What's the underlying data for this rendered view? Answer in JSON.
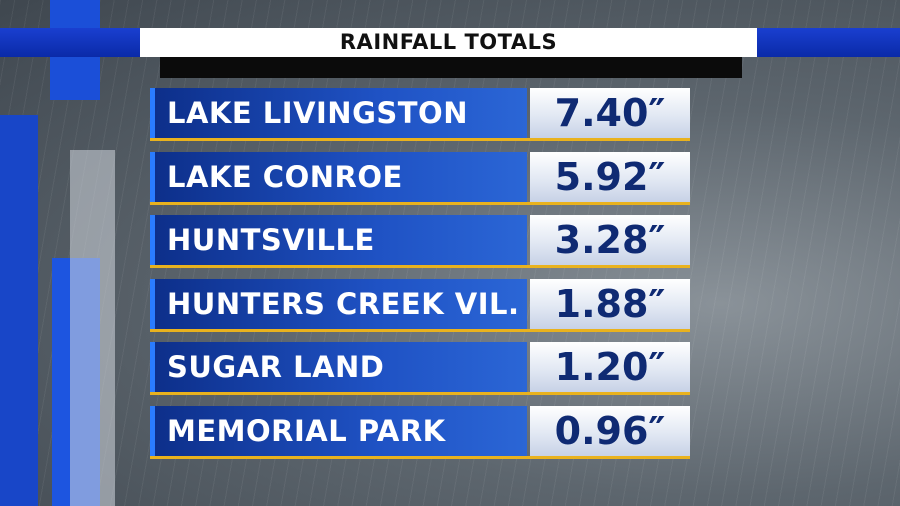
{
  "header": {
    "title": "RAINFALL TOTALS"
  },
  "table": {
    "rows": [
      [
        "LAKE LIVINGSTON",
        "7.40″"
      ],
      [
        "LAKE CONROE",
        "5.92″"
      ],
      [
        "HUNTSVILLE",
        "3.28″"
      ],
      [
        "HUNTERS CREEK VIL.",
        "1.88″"
      ],
      [
        "SUGAR LAND",
        "1.20″"
      ],
      [
        "MEMORIAL PARK",
        "0.96″"
      ]
    ]
  }
}
